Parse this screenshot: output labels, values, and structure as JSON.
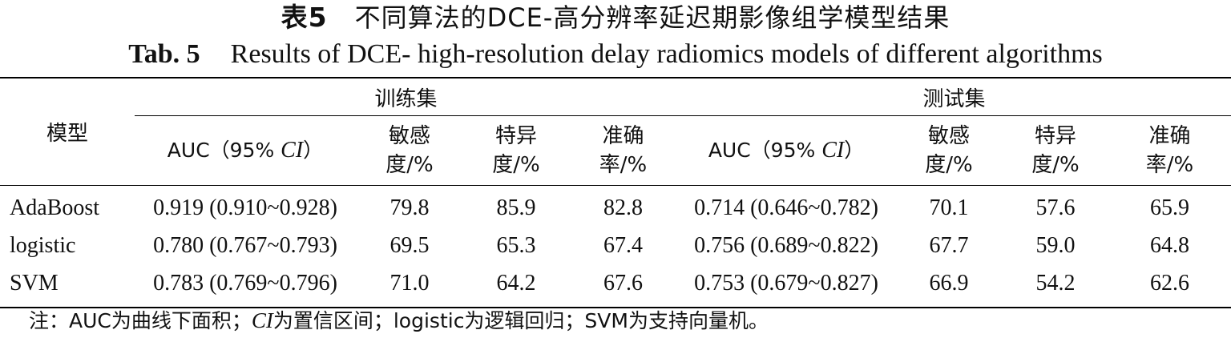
{
  "title_cn": {
    "label": "表5",
    "text": "不同算法的DCE-高分辨率延迟期影像组学模型结果"
  },
  "title_en": {
    "label": "Tab. 5",
    "text": "Results of DCE- high-resolution delay radiomics models of different algorithms"
  },
  "table": {
    "model_header": "模型",
    "group_train": "训练集",
    "group_test": "测试集",
    "col_auc_prefix": "AUC（95% ",
    "col_auc_ci": "CI",
    "col_auc_suffix": "）",
    "col_sens_1": "敏感",
    "col_sens_2": "度/%",
    "col_spec_1": "特异",
    "col_spec_2": "度/%",
    "col_acc_1": "准确",
    "col_acc_2": "率/%",
    "rows": [
      {
        "model": "AdaBoost",
        "train_auc": "0.919 (0.910~0.928)",
        "train_sens": "79.8",
        "train_spec": "85.9",
        "train_acc": "82.8",
        "test_auc": "0.714 (0.646~0.782)",
        "test_sens": "70.1",
        "test_spec": "57.6",
        "test_acc": "65.9"
      },
      {
        "model": "logistic",
        "train_auc": "0.780 (0.767~0.793)",
        "train_sens": "69.5",
        "train_spec": "65.3",
        "train_acc": "67.4",
        "test_auc": "0.756 (0.689~0.822)",
        "test_sens": "67.7",
        "test_spec": "59.0",
        "test_acc": "64.8"
      },
      {
        "model": "SVM",
        "train_auc": "0.783 (0.769~0.796)",
        "train_sens": "71.0",
        "train_spec": "64.2",
        "train_acc": "67.6",
        "test_auc": "0.753 (0.679~0.827)",
        "test_sens": "66.9",
        "test_spec": "54.2",
        "test_acc": "62.6"
      }
    ]
  },
  "note": {
    "p1": "注：AUC为曲线下面积；",
    "ci": "CI",
    "p2": "为置信区间；logistic为逻辑回归；SVM为支持向量机。"
  }
}
